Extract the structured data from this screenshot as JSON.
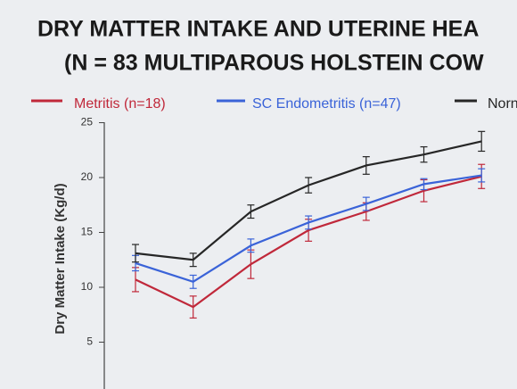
{
  "chart_data": {
    "type": "line",
    "title": "DRY MATTER INTAKE AND UTERINE HEA",
    "subtitle": "(N = 83 MULTIPAROUS HOLSTEIN COW",
    "y_label": "Dry Matter Intake (Kg/d)",
    "categories": [
      null,
      null,
      null,
      null,
      null,
      null,
      null
    ],
    "ylim": [
      0,
      25
    ],
    "yticks": [
      5,
      10,
      15,
      20,
      25
    ],
    "series": [
      {
        "name": "Metritis (n=18)",
        "color": "#c0283a",
        "values": [
          10.7,
          8.2,
          12.1,
          15.2,
          16.9,
          18.8,
          20.1
        ],
        "errors": [
          1.1,
          1.0,
          1.3,
          1.0,
          0.8,
          1.0,
          1.1
        ]
      },
      {
        "name": "SC Endometritis (n=47)",
        "color": "#3a63d8",
        "values": [
          12.2,
          10.5,
          13.8,
          15.9,
          17.6,
          19.4,
          20.2
        ],
        "errors": [
          0.7,
          0.6,
          0.6,
          0.6,
          0.6,
          0.5,
          0.6
        ]
      },
      {
        "name": "Norn",
        "color": "#262626",
        "values": [
          13.1,
          12.5,
          16.9,
          19.3,
          21.1,
          22.1,
          23.3
        ],
        "errors": [
          0.8,
          0.6,
          0.6,
          0.7,
          0.8,
          0.7,
          0.9
        ]
      }
    ]
  }
}
